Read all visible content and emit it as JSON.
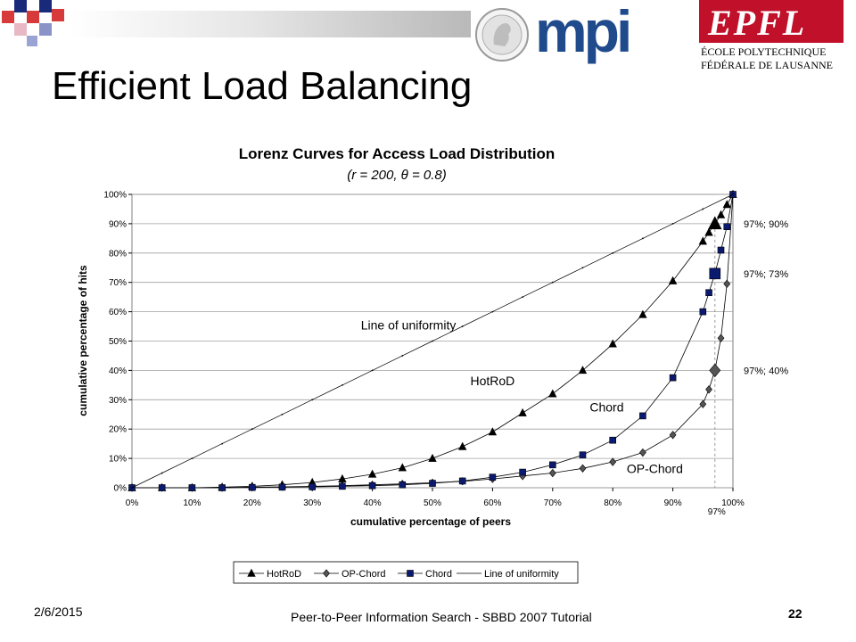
{
  "slide": {
    "title": "Efficient Load Balancing",
    "date": "2/6/2015",
    "footer": "Peer-to-Peer Information Search - SBBD 2007 Tutorial",
    "page": "22",
    "logos": {
      "mpi": "mpi",
      "epfl_mark": "EPFL",
      "epfl_line1": "ÉCOLE POLYTECHNIQUE",
      "epfl_line2": "FÉDÉRALE DE LAUSANNE"
    }
  },
  "chart_data": {
    "type": "line",
    "title": "Lorenz Curves for Access Load Distribution",
    "subtitle": "(r = 200, θ = 0.8)",
    "xlabel": "cumulative percentage of peers",
    "ylabel": "cumulative percentage of hits",
    "xlim": [
      0,
      100
    ],
    "ylim": [
      0,
      100
    ],
    "x_ticks": [
      "0%",
      "10%",
      "20%",
      "30%",
      "40%",
      "50%",
      "60%",
      "70%",
      "80%",
      "90%",
      "100%"
    ],
    "y_ticks": [
      "0%",
      "10%",
      "20%",
      "30%",
      "40%",
      "50%",
      "60%",
      "70%",
      "80%",
      "90%",
      "100%"
    ],
    "extra_x_tick": "97%",
    "legend_position": "bottom",
    "series": [
      {
        "name": "HotRoD",
        "marker": "triangle",
        "color": "#000000",
        "x": [
          0,
          5,
          10,
          15,
          20,
          25,
          30,
          35,
          40,
          45,
          50,
          55,
          60,
          65,
          70,
          75,
          80,
          85,
          90,
          95,
          96,
          97,
          98,
          99,
          100
        ],
        "y": [
          0,
          0,
          0,
          0.2,
          0.5,
          1,
          1.8,
          3,
          4.6,
          6.8,
          10,
          14,
          19,
          25.5,
          32,
          40,
          49,
          59,
          70.5,
          84,
          87,
          90,
          93,
          96.5,
          100
        ]
      },
      {
        "name": "OP-Chord",
        "marker": "diamond",
        "color": "#555555",
        "x": [
          0,
          5,
          10,
          15,
          20,
          25,
          30,
          35,
          40,
          45,
          50,
          55,
          60,
          65,
          70,
          75,
          80,
          85,
          90,
          95,
          96,
          97,
          98,
          99,
          100
        ],
        "y": [
          0,
          0,
          0,
          0,
          0.2,
          0.3,
          0.5,
          0.7,
          1,
          1.3,
          1.7,
          2.2,
          3,
          4,
          5,
          6.6,
          8.8,
          12,
          18,
          28.5,
          33.5,
          40,
          51,
          69.5,
          100
        ]
      },
      {
        "name": "Chord",
        "marker": "square",
        "color": "#0b1a6e",
        "x": [
          0,
          5,
          10,
          15,
          20,
          25,
          30,
          35,
          40,
          45,
          50,
          55,
          60,
          65,
          70,
          75,
          80,
          85,
          90,
          95,
          96,
          97,
          98,
          99,
          100
        ],
        "y": [
          0,
          0,
          0,
          0,
          0.1,
          0.2,
          0.3,
          0.5,
          0.7,
          1,
          1.5,
          2.3,
          3.6,
          5.3,
          7.8,
          11.2,
          16.2,
          24.5,
          37.5,
          60,
          66.5,
          73,
          81,
          89,
          100
        ]
      },
      {
        "name": "Line of uniformity",
        "marker": "none",
        "color": "#000000",
        "x": [
          0,
          5,
          10,
          15,
          20,
          25,
          30,
          35,
          40,
          45,
          50,
          55,
          60,
          65,
          70,
          75,
          80,
          85,
          90,
          95,
          100
        ],
        "y": [
          0,
          5,
          10,
          15,
          20,
          25,
          30,
          35,
          40,
          45,
          50,
          55,
          60,
          65,
          70,
          75,
          80,
          85,
          90,
          95,
          100
        ]
      }
    ],
    "highlights": [
      {
        "series": "HotRoD",
        "x": 97,
        "y": 90,
        "label": "97%; 90%"
      },
      {
        "series": "Chord",
        "x": 97,
        "y": 73,
        "label": "97%; 73%"
      },
      {
        "series": "OP-Chord",
        "x": 97,
        "y": 40,
        "label": "97%; 40%"
      }
    ],
    "annotations": [
      {
        "text": "Line of uniformity",
        "x": 46,
        "y": 54
      },
      {
        "text": "HotRoD",
        "x": 60,
        "y": 35
      },
      {
        "text": "Chord",
        "x": 79,
        "y": 26
      },
      {
        "text": "OP-Chord",
        "x": 87,
        "y": 5
      }
    ]
  }
}
